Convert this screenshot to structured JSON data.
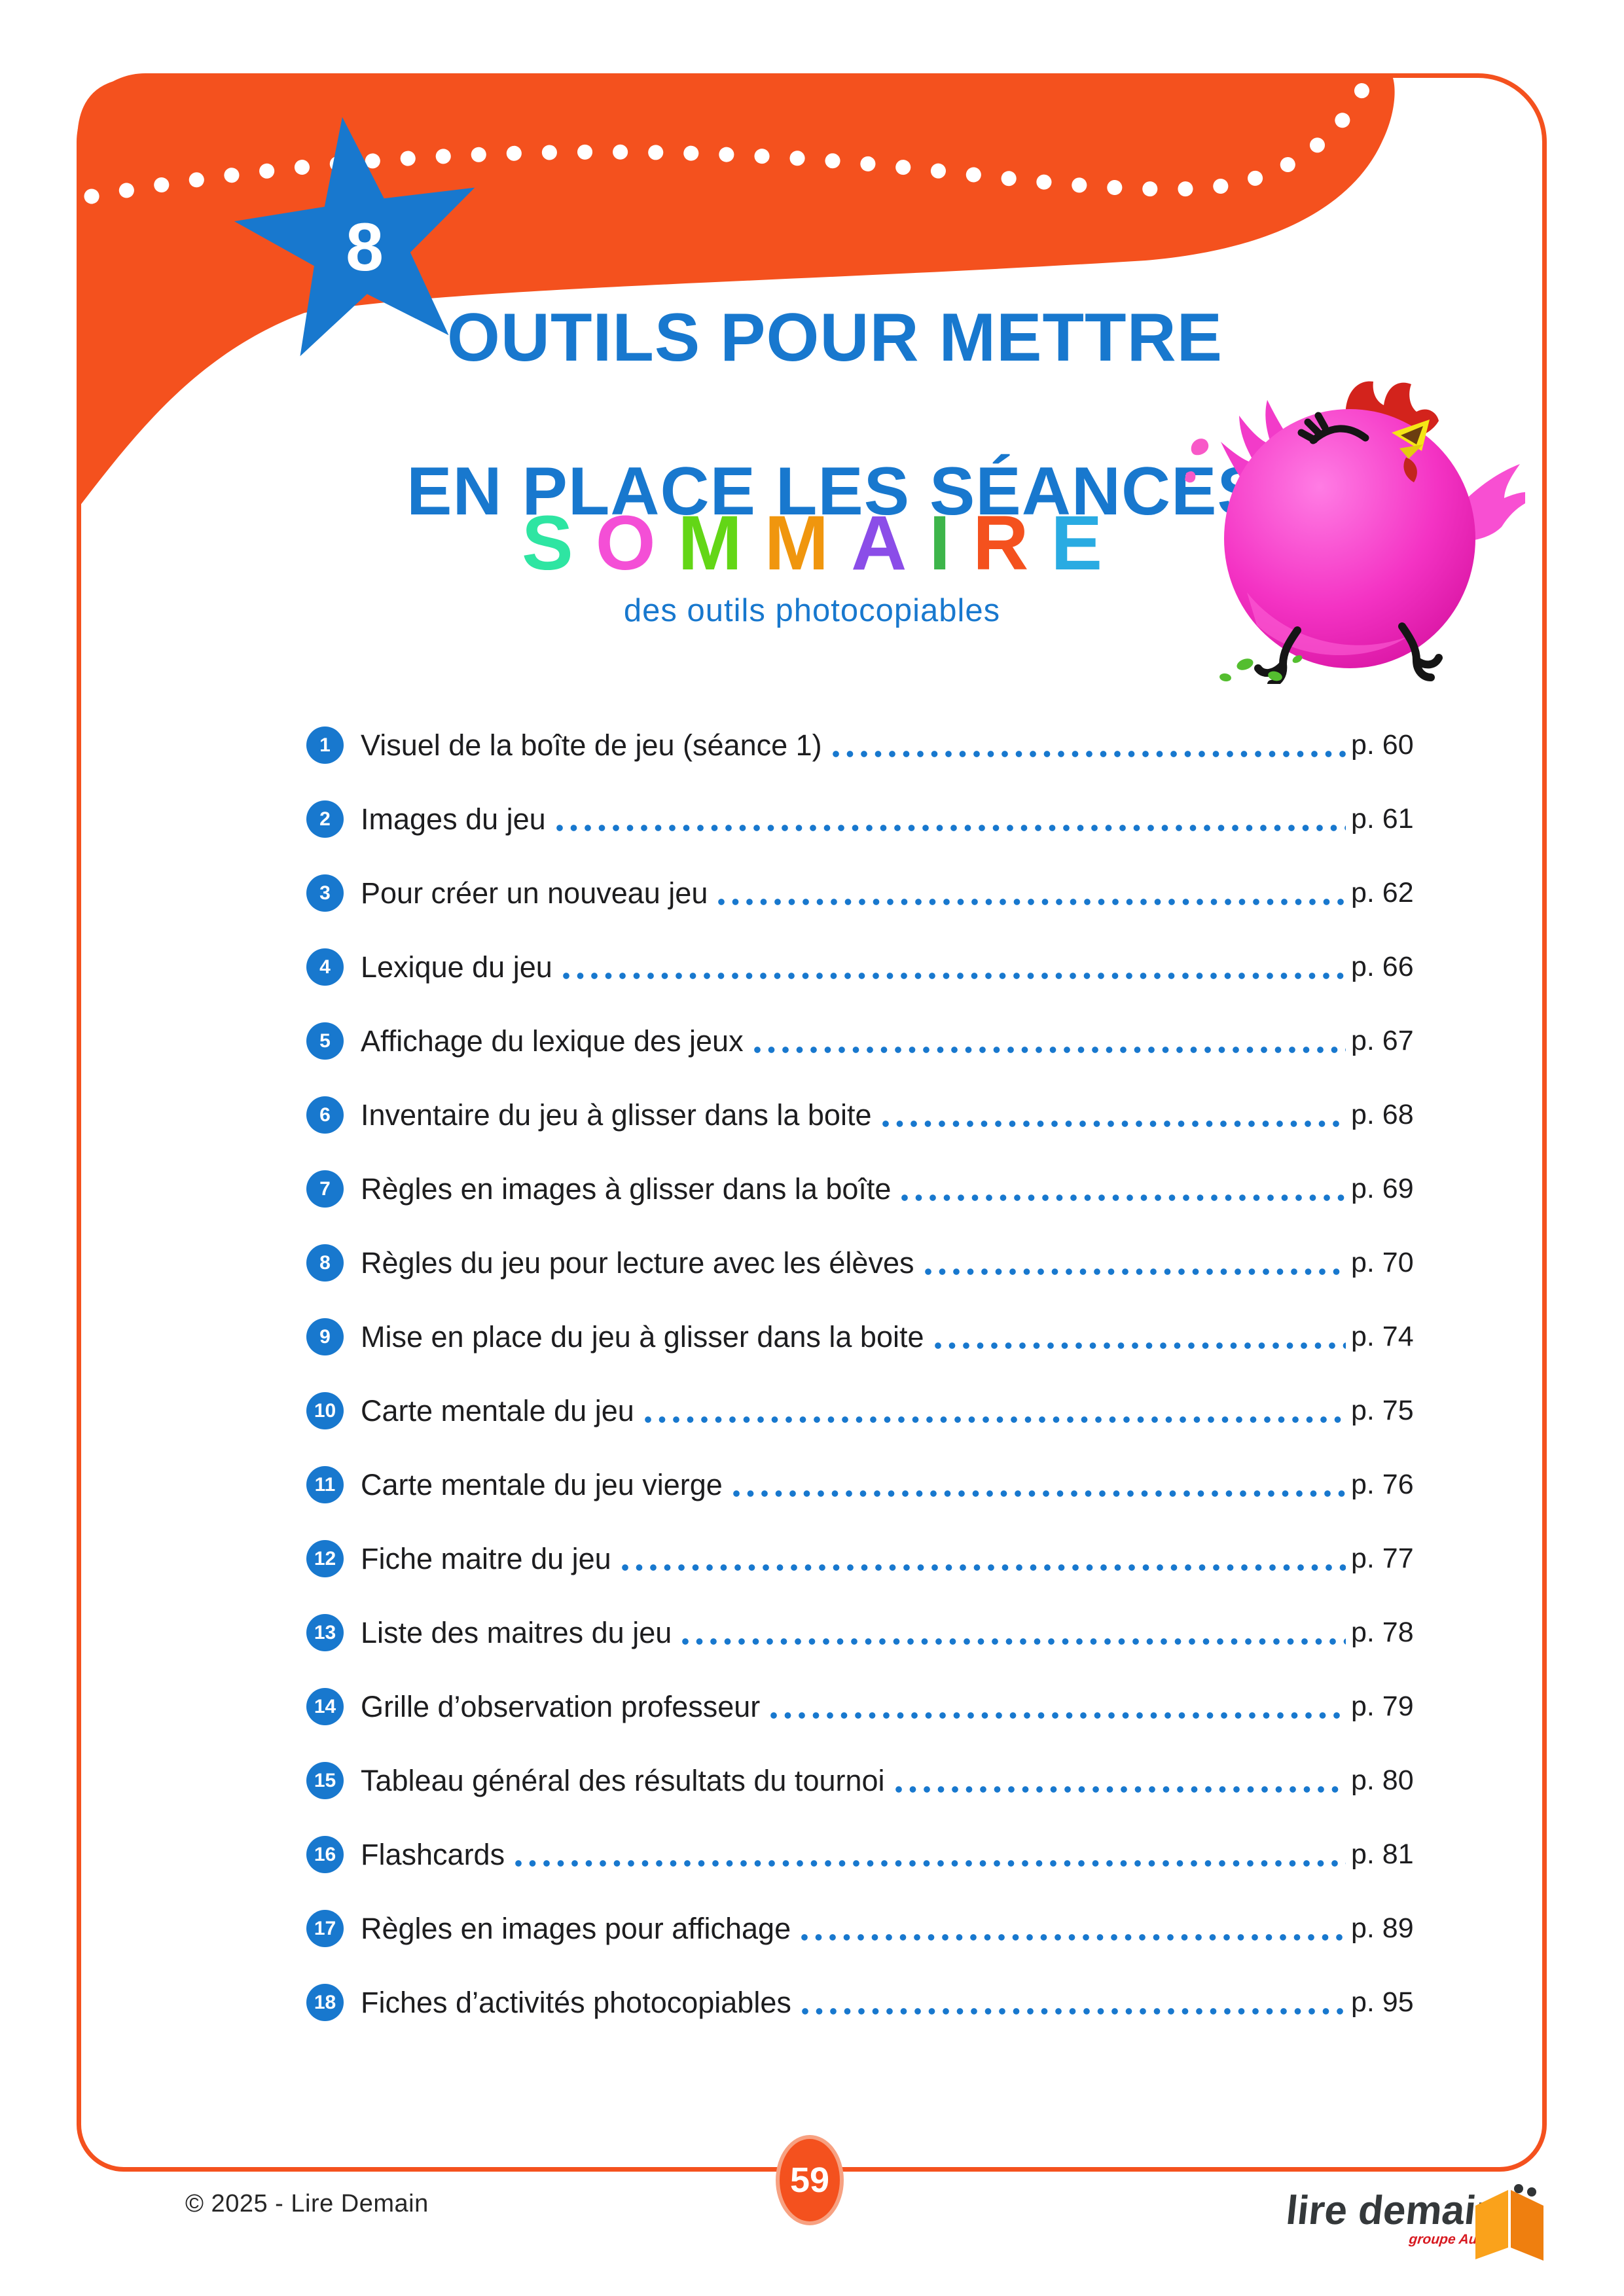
{
  "page": {
    "background": "#FFFFFF",
    "frame_color": "#F4511E"
  },
  "header": {
    "chapter_number": "8",
    "band_color": "#F4511E",
    "star_color": "#1878CE",
    "dotted_line_color": "#FFFFFF",
    "title_line1": "OUTILS POUR METTRE",
    "title_line2": "EN PLACE LES SÉANCES",
    "title_color": "#1878CE"
  },
  "sommaire": {
    "letters": [
      {
        "ch": "S",
        "color": "#2EE5A2"
      },
      {
        "ch": "O",
        "color": "#F44FD6"
      },
      {
        "ch": "M",
        "color": "#63D616"
      },
      {
        "ch": "M",
        "color": "#F0960E"
      },
      {
        "ch": "A",
        "color": "#8B4DE8"
      },
      {
        "ch": "I",
        "color": "#3DB54A"
      },
      {
        "ch": "R",
        "color": "#F4511E"
      },
      {
        "ch": "E",
        "color": "#29ABE2"
      }
    ],
    "subtitle": "des outils photocopiables",
    "subtitle_color": "#1878CE"
  },
  "toc": {
    "accent_color": "#1878CE",
    "text_color": "#1D1D1F",
    "items": [
      {
        "n": "1",
        "label": "Visuel de la boîte de jeu (séance 1)",
        "page": "p. 60"
      },
      {
        "n": "2",
        "label": "Images du jeu",
        "page": "p. 61"
      },
      {
        "n": "3",
        "label": "Pour créer un nouveau jeu",
        "page": "p. 62"
      },
      {
        "n": "4",
        "label": "Lexique du jeu",
        "page": "p. 66"
      },
      {
        "n": "5",
        "label": "Affichage du lexique des jeux",
        "page": "p. 67"
      },
      {
        "n": "6",
        "label": "Inventaire du jeu à glisser dans la boite",
        "page": "p. 68"
      },
      {
        "n": "7",
        "label": "Règles en images à glisser dans la boîte",
        "page": "p. 69"
      },
      {
        "n": "8",
        "label": "Règles du jeu pour lecture avec les élèves",
        "page": "p. 70"
      },
      {
        "n": "9",
        "label": "Mise en place du jeu à glisser dans la boite",
        "page": "p. 74"
      },
      {
        "n": "10",
        "label": "Carte mentale du jeu",
        "page": "p. 75"
      },
      {
        "n": "11",
        "label": "Carte mentale du jeu vierge",
        "page": "p. 76"
      },
      {
        "n": "12",
        "label": "Fiche maitre du jeu",
        "page": "p. 77"
      },
      {
        "n": "13",
        "label": "Liste des maitres du jeu",
        "page": "p. 78"
      },
      {
        "n": "14",
        "label": "Grille d’observation professeur",
        "page": "p. 79"
      },
      {
        "n": "15",
        "label": "Tableau général des résultats du tournoi",
        "page": "p. 80"
      },
      {
        "n": "16",
        "label": "Flashcards",
        "page": "p. 81"
      },
      {
        "n": "17",
        "label": "Règles en images pour affichage",
        "page": "p. 89"
      },
      {
        "n": "18",
        "label": "Fiches d’activités photocopiables",
        "page": "p. 95"
      }
    ]
  },
  "illustration": {
    "name": "pink-hen-running",
    "body_color": "#EE2BB4"
  },
  "footer": {
    "page_badge": "59",
    "badge_color": "#F4511E",
    "copyright": "© 2025 - Lire Demain",
    "logo_text": "lire demain",
    "logo_sub": "groupe Auzou"
  }
}
